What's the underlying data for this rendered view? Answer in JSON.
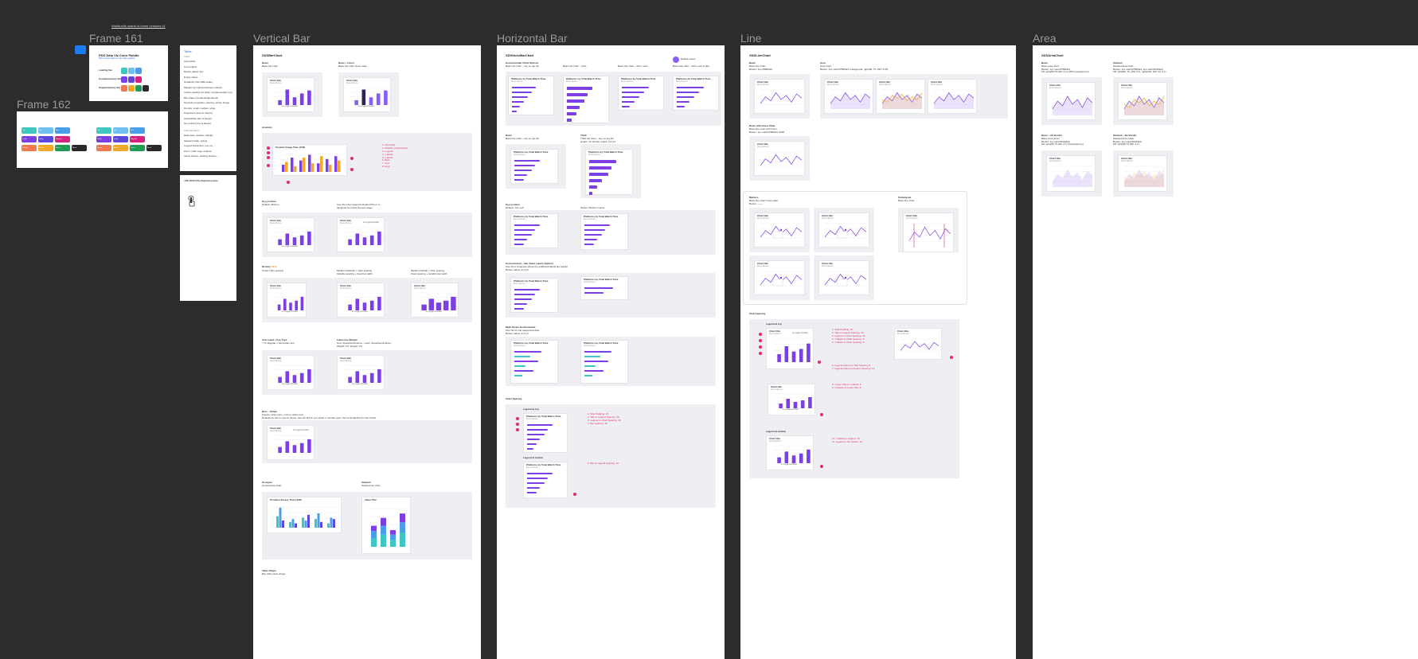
{
  "top_link": "Workfunits charts in-home versions v1",
  "frames": {
    "f161": "Frame 161",
    "f162": "Frame 162",
    "vbar": "Vertical Bar",
    "hbar": "Horizontal Bar",
    "line": "Line",
    "area": "Area"
  },
  "palette": {
    "title": "PDS Data Viz Color Palette",
    "link": "https://www.figma.com/pds-palette",
    "rows": [
      {
        "label": "Leading Set",
        "colors": [
          "#3ec7c0",
          "#6fc0f0",
          "#4a9ee8"
        ]
      },
      {
        "label": "Complementary Set",
        "colors": [
          "#7b3fe4",
          "#5b47d9",
          "#d6227f"
        ]
      },
      {
        "label": "Supplementary Set",
        "colors": [
          "#ef7a52",
          "#f0a92a",
          "#1f9d55",
          "#2a2a2a"
        ]
      }
    ]
  },
  "pills": {
    "left": [
      [
        {
          "c": "#3ec7c0",
          "t": "Teal"
        },
        {
          "c": "#6fc0f0",
          "t": "Sky"
        },
        {
          "c": "#4a9ee8",
          "t": "Blue"
        }
      ],
      [
        {
          "c": "#7b3fe4",
          "t": "Purple"
        },
        {
          "c": "#5b47d9",
          "t": "Indigo"
        },
        {
          "c": "#d6227f",
          "t": "Magenta"
        }
      ],
      [
        {
          "c": "#ef7a52",
          "t": "Orange"
        },
        {
          "c": "#f0a92a",
          "t": "Amber"
        },
        {
          "c": "#1f9d55",
          "t": "Green"
        },
        {
          "c": "#2a2a2a",
          "t": "Black"
        }
      ]
    ],
    "right": [
      [
        {
          "c": "#3ec7c0",
          "t": "Teal"
        },
        {
          "c": "#6fc0f0",
          "t": "Sky"
        },
        {
          "c": "#4a9ee8",
          "t": "Blue"
        }
      ],
      [
        {
          "c": "#7b3fe4",
          "t": "Purple"
        },
        {
          "c": "#5b47d9",
          "t": "Indigo"
        },
        {
          "c": "#d6227f",
          "t": "Magenta"
        }
      ],
      [
        {
          "c": "#ef7a52",
          "t": "Orange"
        },
        {
          "c": "#f0a92a",
          "t": "Amber"
        },
        {
          "c": "#1f9d55",
          "t": "Green"
        },
        {
          "c": "#2a2a2a",
          "t": "Black"
        }
      ]
    ]
  },
  "tokens": {
    "title": "Table",
    "header": "Label",
    "items": [
      "Axis labels",
      "Line heights",
      "Border radius: 4px",
      "Empty states",
      "Gradients (CH-1000-scale)",
      "Margins (px) (dimensions/px values)",
      "Colors: leading set (dark, complementary set)",
      "Bar shape (rounded/chamfered)",
      "Dynamic properties: spacing, sizing, image",
      "Density: small, medium, large",
      "Projections (line for Saylor)",
      "Accessibility (Do & Saylor)",
      "Non-Cash (Line & Saylor)"
    ],
    "header2": "Label Behavior",
    "items2": [
      "Data state: Surface, display",
      "Selected state: styling",
      "Legend interaction: use url, ...",
      "Zoom: chart map, analyze",
      "Active bottom: existing buttons, ..."
    ]
  },
  "summit": {
    "title": "+DS 2020 Infra Summit assets"
  },
  "vbar": {
    "header": "XDSBarChart",
    "basic": {
      "t": "Basic",
      "s": "Basic bar chart"
    },
    "basic_hover": {
      "t": "Basic + Hover",
      "s": "Basic bar chart hover state"
    },
    "anatomy": "Anatomy",
    "anatomy_chart_title": "Product Usage Time (%W)",
    "anatomy_notes": "1. Chart title\n2. Subtitle or description\n3. Legend\n4. y-labels\n5. x-labels\n6. Bars\n7. Grid\n8. Area",
    "key_position": {
      "t": "Key position",
      "s": "Default / Bottom"
    },
    "key_position2": {
      "t": "Bottom / Top Left",
      "s": "Use this when legend includes KPIs or is\ndesigned for brand themed usage"
    },
    "density": {
      "t": "Density",
      "flag": "NEW",
      "s": "Small = 8px spacing"
    },
    "density2": {
      "s": "Medium (Default) = 16px spacing\nVariable spacing + fixed bar width"
    },
    "density3": {
      "s": "Medium Default = 16px spacing\nFixed spacing + variable bar width"
    },
    "axis_label": {
      "t": "Axis Label + Key Type",
      "s": "Y To Regular + Secondary text"
    },
    "label_weight": {
      "t": "Label Line Weight",
      "s": "Grid: Speed/sentinel/rev  x-axis: Speed/sentinel/rev\nWeight: 0.5  Weight: 0.5"
    },
    "bars_shape": {
      "t": "Bars – Shape",
      "s": "Square / side rows + corner radius max\nDefaults for bar in column charts. Use should for you prefer a rounder goal. Use rectangle/line for line charts"
    },
    "grouped": {
      "t": "Grouped",
      "s": "Grouped bar chart"
    },
    "stacked": {
      "t": "Stacked",
      "s": "Stacked bar chart"
    },
    "grouped_title": "Premium Survey Time (%W)",
    "stacked_title": "Value Title",
    "value_shape": {
      "t": "Value Shape",
      "s": "Bar chart value shape"
    },
    "chart_title": "Chart title",
    "chart_sub": "Description",
    "legend": "Legend label"
  },
  "hbar": {
    "header": "XDSHorizBarChart",
    "toggle": "Default option",
    "options": {
      "t": "Horizontal Bar Chart Options",
      "s": "Basic bar chart – key on top left"
    },
    "opt2": "Basic bar chart – thick",
    "opt3": "Basic bar chart – with x-axis",
    "opt4": "Basic bar chart – with x-axis & title",
    "basic": {
      "t": "Basic",
      "s": "Basic bar chart – key on top left"
    },
    "thick": {
      "t": "Thick",
      "s": "Thick bar chart – key on top left\nHeight: 16, Border radius: 0,2,2,0"
    },
    "key_position": {
      "t": "Key position",
      "s": "Default / Top Left"
    },
    "key_position2": {
      "s": "Option / Bottom Center"
    },
    "value_labels": {
      "t": "Horizontal bar – Bar Value Labels (Option)",
      "s": "Use this if instances where the additional labels are helpful\nBorder radius: 0,2,2,0"
    },
    "multi": {
      "t": "Multi-Series Horiz/stacked",
      "s": "Use this for the categorical data\nBorder radius: 0,2,2,0"
    },
    "spacing": "Chart Spacing",
    "legend_top": "Legend at top",
    "legend_bottom": "Legend at bottom",
    "spacing_notes": "1. Side Padding: 16\n2. Title to Legend Spacing: 16\n3. Legend to Chart Spacing: 16\n4. Bar Spacing: 16",
    "spacing_notes2": "5. Bar to Legend Spacing: 16",
    "chart_title": "Platforms by Total Watch Time",
    "chart_sub": "Description",
    "sample_title": "Sample Bar Chart"
  },
  "line": {
    "header": "XDSLineChart",
    "basic": {
      "t": "Basic",
      "s": "Basic line chart\nBorder: 1px #6B4FE9"
    },
    "area": {
      "t": "Area",
      "s": "Area chart\nBorder: 1px solid #7B3FE4, background: rgba(96, 75, 230, 0.05)"
    },
    "hover": {
      "t": "Basic with Hover State",
      "s": "Basic line chart with hover\nBorder: 1px solid #7B3FE4, #666"
    },
    "markers": {
      "t": "Markers",
      "s": "Basic line chart hover state\nBorder: ——"
    },
    "underlay": {
      "t": "Underlayed",
      "s": "Basic line chart"
    },
    "spacing": "Chart Spacing",
    "legend_top": "Legend at top",
    "legend_bottom": "Legend at bottom",
    "spacing_notes": "1. Side Padding: 16\n2. Title to Legend Spacing: 16\n3. Legend to Chart Spacing: 16\n4. Y-labels to Chart Spacing: 8\n5. Y-labels to Chart Spacing: 8",
    "spacing_notes2": "6. Legend bottom to Title Spacing: 8\n7. Legend bottom to bottom Spacing: 16",
    "spacing_notes3": "8. Y-axis: Title to Y-labels: 8\n9. X-labels to X-axis Title: 8",
    "spacing_notes4": "10. Y-labels to Legend: 16\n11. Legend to the bottom: 16",
    "chart_title": "Chart title",
    "chart_sub": "Description"
  },
  "area": {
    "header": "XDSAreaChart",
    "basic": {
      "t": "Basic",
      "s": "Basic area chart\nBorder: 1px solid #7B3FE4\nFill: rgba(96,75,230, 0.1) (18% transparency)"
    },
    "stacked": {
      "t": "Stacked",
      "s": "Stacked Area chart\nBorder: 1px solid #7B3FE4, 1px solid #F0A92A\nFill: rgba(96, 75, 230, 0.1), rgba(240, 169, 42, 0.1)"
    },
    "no_border": {
      "t": "Basic – No Border",
      "s": "Basic Area Chart\nBorder: 1px solid #F0A92A\nFill: rgba(96,75,230, 0.1) (transparency)"
    },
    "stacked_no_border": {
      "t": "Stacked – No Border",
      "s": "Stacked Area Chart\nBorder: 1px solid #F0A92A\nFill: rgba(96,75,230, 0.1)"
    },
    "chart_title": "Chart title",
    "chart_sub": "Description"
  }
}
